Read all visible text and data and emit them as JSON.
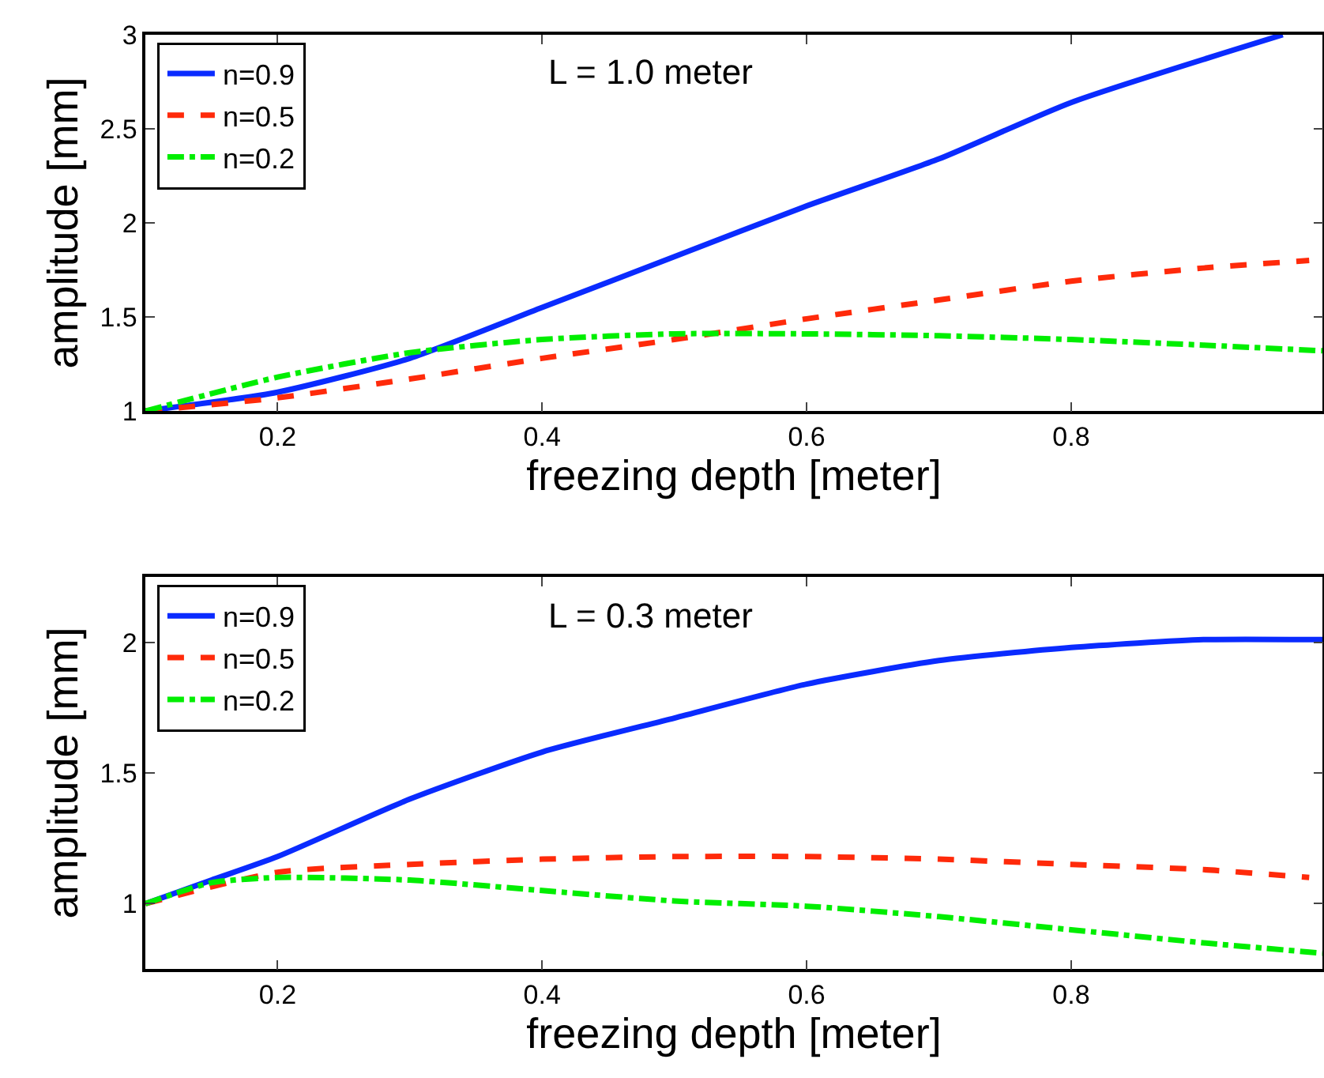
{
  "chart_data": [
    {
      "type": "line",
      "xlabel": "freezing depth [meter]",
      "ylabel": "amplitude [mm]",
      "annotations": [
        "L = 1.0 meter"
      ],
      "xlim": [
        0.1,
        0.99
      ],
      "xticks": [
        0.2,
        0.4,
        0.6,
        0.8
      ],
      "ylim": [
        1,
        3
      ],
      "yticks": [
        1,
        1.5,
        2,
        2.5,
        3
      ],
      "grid": false,
      "legend": "top left",
      "marker": "none",
      "series": [
        {
          "name": "n=0.9",
          "color": "#0a2bff",
          "line_style": "solid",
          "x": [
            0.1,
            0.2,
            0.3,
            0.4,
            0.5,
            0.6,
            0.7,
            0.8,
            0.96
          ],
          "values": [
            1,
            1.1,
            1.28,
            1.55,
            1.82,
            2.09,
            2.34,
            2.64,
            3.0
          ]
        },
        {
          "name": "n=0.5",
          "color": "#ff2a0a",
          "line_style": "dashed",
          "x": [
            0.1,
            0.2,
            0.3,
            0.4,
            0.5,
            0.6,
            0.7,
            0.8,
            0.9,
            0.98
          ],
          "values": [
            1,
            1.07,
            1.17,
            1.28,
            1.38,
            1.49,
            1.59,
            1.69,
            1.76,
            1.8
          ]
        },
        {
          "name": "n=0.2",
          "color": "#00ee00",
          "line_style": "dashdot",
          "x": [
            0.1,
            0.2,
            0.3,
            0.4,
            0.5,
            0.6,
            0.7,
            0.8,
            0.9,
            0.99
          ],
          "values": [
            1,
            1.18,
            1.31,
            1.38,
            1.41,
            1.41,
            1.4,
            1.38,
            1.35,
            1.32
          ]
        }
      ]
    },
    {
      "type": "line",
      "xlabel": "freezing depth [meter]",
      "ylabel": "amplitude [mm]",
      "annotations": [
        "L = 0.3 meter"
      ],
      "xlim": [
        0.1,
        0.99
      ],
      "xticks": [
        0.2,
        0.4,
        0.6,
        0.8
      ],
      "ylim": [
        0.75,
        2.25
      ],
      "yticks": [
        1,
        1.5,
        2
      ],
      "grid": false,
      "legend": "top left",
      "marker": "none",
      "series": [
        {
          "name": "n=0.9",
          "color": "#0a2bff",
          "line_style": "solid",
          "x": [
            0.1,
            0.15,
            0.2,
            0.3,
            0.4,
            0.5,
            0.6,
            0.7,
            0.8,
            0.9,
            0.99
          ],
          "values": [
            1,
            1.09,
            1.18,
            1.4,
            1.58,
            1.71,
            1.84,
            1.93,
            1.98,
            2.01,
            2.01
          ]
        },
        {
          "name": "n=0.5",
          "color": "#ff2a0a",
          "line_style": "dashed",
          "x": [
            0.1,
            0.2,
            0.3,
            0.4,
            0.5,
            0.6,
            0.7,
            0.8,
            0.9,
            0.98
          ],
          "values": [
            1,
            1.12,
            1.15,
            1.17,
            1.18,
            1.18,
            1.17,
            1.15,
            1.13,
            1.1
          ]
        },
        {
          "name": "n=0.2",
          "color": "#00ee00",
          "line_style": "dashdot",
          "x": [
            0.1,
            0.15,
            0.2,
            0.3,
            0.4,
            0.5,
            0.6,
            0.7,
            0.8,
            0.9,
            0.99
          ],
          "values": [
            1,
            1.08,
            1.1,
            1.09,
            1.05,
            1.01,
            0.99,
            0.95,
            0.9,
            0.85,
            0.81
          ]
        }
      ]
    }
  ]
}
